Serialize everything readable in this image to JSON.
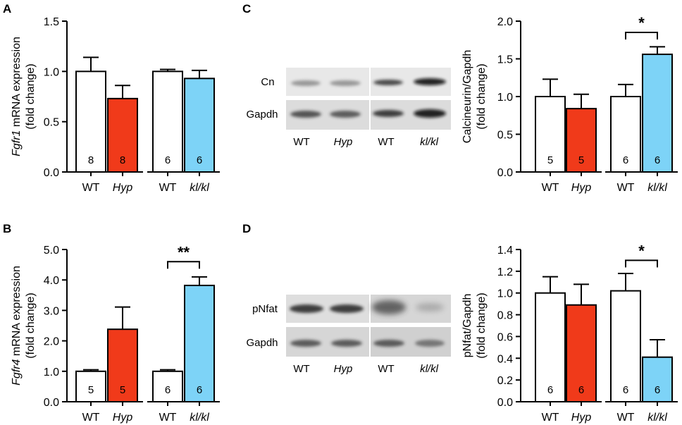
{
  "colors": {
    "wt": "#ffffff",
    "hyp": "#f03a1a",
    "klkl": "#7dd3f7",
    "axis": "#000000"
  },
  "panels": {
    "A": "A",
    "B": "B",
    "C": "C",
    "D": "D"
  },
  "blots": {
    "C": {
      "rows": [
        "Cn",
        "Gapdh"
      ],
      "lanes": [
        "WT",
        "Hyp",
        "WT",
        "kl/kl"
      ],
      "lane_italic": [
        false,
        true,
        false,
        true
      ]
    },
    "D": {
      "rows": [
        "pNfat",
        "Gapdh"
      ],
      "lanes": [
        "WT",
        "Hyp",
        "WT",
        "kl/kl"
      ],
      "lane_italic": [
        false,
        true,
        false,
        true
      ]
    }
  },
  "chart_data": [
    {
      "id": "A",
      "type": "bar",
      "ylabel_italic": "Fgfr1",
      "ylabel_rest": " mRNA expression",
      "ylabel_line2": "(fold change)",
      "ylim": [
        0,
        1.5
      ],
      "yticks": [
        "0.0",
        "0.5",
        "1.0",
        "1.5"
      ],
      "categories": [
        "WT",
        "Hyp",
        "WT",
        "kl/kl"
      ],
      "cat_italic": [
        false,
        true,
        false,
        true
      ],
      "values": [
        1.0,
        0.73,
        1.0,
        0.93
      ],
      "errors": [
        0.14,
        0.13,
        0.02,
        0.08
      ],
      "n": [
        "8",
        "8",
        "6",
        "6"
      ],
      "colors": [
        "wt",
        "hyp",
        "wt",
        "klkl"
      ],
      "significance": null
    },
    {
      "id": "B",
      "type": "bar",
      "ylabel_italic": "Fgfr4",
      "ylabel_rest": " mRNA expression",
      "ylabel_line2": "(fold change)",
      "ylim": [
        0,
        5.0
      ],
      "yticks": [
        "0.0",
        "1.0",
        "2.0",
        "3.0",
        "4.0",
        "5.0"
      ],
      "categories": [
        "WT",
        "Hyp",
        "WT",
        "kl/kl"
      ],
      "cat_italic": [
        false,
        true,
        false,
        true
      ],
      "values": [
        1.0,
        2.38,
        1.0,
        3.82
      ],
      "errors": [
        0.05,
        0.73,
        0.05,
        0.28
      ],
      "n": [
        "5",
        "5",
        "6",
        "6"
      ],
      "colors": [
        "wt",
        "hyp",
        "wt",
        "klkl"
      ],
      "significance": {
        "from": 2,
        "to": 3,
        "y": 4.6,
        "label": "**"
      }
    },
    {
      "id": "C",
      "type": "bar",
      "ylabel_italic": "",
      "ylabel_rest": "Calcineurin/Gapdh",
      "ylabel_line2": "(fold change)",
      "ylim": [
        0,
        2.0
      ],
      "yticks": [
        "0.0",
        "0.5",
        "1.0",
        "1.5",
        "2.0"
      ],
      "categories": [
        "WT",
        "Hyp",
        "WT",
        "kl/kl"
      ],
      "cat_italic": [
        false,
        true,
        false,
        true
      ],
      "values": [
        1.0,
        0.84,
        1.0,
        1.56
      ],
      "errors": [
        0.23,
        0.19,
        0.16,
        0.1
      ],
      "n": [
        "5",
        "5",
        "6",
        "6"
      ],
      "colors": [
        "wt",
        "hyp",
        "wt",
        "klkl"
      ],
      "significance": {
        "from": 2,
        "to": 3,
        "y": 1.85,
        "label": "*"
      }
    },
    {
      "id": "D",
      "type": "bar",
      "ylabel_italic": "",
      "ylabel_rest": "pNfat/Gapdh",
      "ylabel_line2": "(fold change)",
      "ylim": [
        0,
        1.4
      ],
      "yticks": [
        "0.0",
        "0.2",
        "0.4",
        "0.6",
        "0.8",
        "1.0",
        "1.2",
        "1.4"
      ],
      "categories": [
        "WT",
        "Hyp",
        "WT",
        "kl/kl"
      ],
      "cat_italic": [
        false,
        true,
        false,
        true
      ],
      "values": [
        1.0,
        0.89,
        1.02,
        0.41
      ],
      "errors": [
        0.15,
        0.19,
        0.16,
        0.16
      ],
      "n": [
        "6",
        "6",
        "6",
        "6"
      ],
      "colors": [
        "wt",
        "hyp",
        "wt",
        "klkl"
      ],
      "significance": {
        "from": 2,
        "to": 3,
        "y": 1.3,
        "label": "*"
      }
    }
  ]
}
